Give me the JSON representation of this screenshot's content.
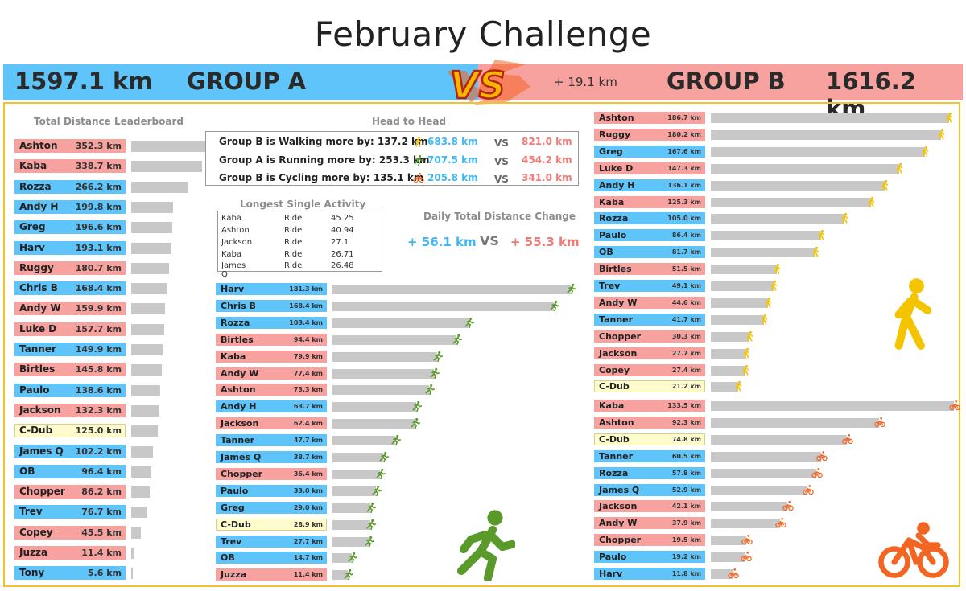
{
  "title": "February Challenge",
  "banner": {
    "group_a_total": "1597.1 km",
    "group_a_name": "GROUP A",
    "difference": "+ 19.1 km",
    "group_b_name": "GROUP B",
    "group_b_total": "1616.2 km",
    "vs_text": "VS"
  },
  "colors": {
    "group_a": "#5ec4f9",
    "group_b": "#f8a2a0",
    "neutral": "#fefbcc",
    "bar": "#c8c8c8",
    "walk": "#f5c400",
    "run": "#5a9a2a",
    "cycle": "#f26522"
  },
  "head_to_head": {
    "title": "Head to Head",
    "vs": "VS",
    "rows": [
      {
        "text": "Group B is Walking more by: 137.2 km",
        "icon": "walk-icon",
        "a": "683.8 km",
        "b": "821.0 km"
      },
      {
        "text": "Group A is Running more by: 253.3 km",
        "icon": "run-icon",
        "a": "707.5 km",
        "b": "454.2 km"
      },
      {
        "text": "Group B is Cycling more by: 135.1 km",
        "icon": "cycle-icon",
        "a": "205.8 km",
        "b": "341.0 km"
      }
    ]
  },
  "longest_single_activity": {
    "title": "Longest Single Activity",
    "rows": [
      [
        "Kaba",
        "Ride",
        "45.25"
      ],
      [
        "Ashton",
        "Ride",
        "40.94"
      ],
      [
        "Jackson",
        "Ride",
        "27.1"
      ],
      [
        "Kaba",
        "Ride",
        "26.71"
      ],
      [
        "James Q",
        "Ride",
        "26.48"
      ]
    ]
  },
  "daily_change": {
    "title": "Daily Total Distance Change",
    "a": "+ 56.1 km",
    "vs": "VS",
    "b": "+ 55.3 km"
  },
  "chart_data": [
    {
      "type": "bar",
      "title": "Total Distance Leaderboard",
      "unit": "km",
      "max": 352.3,
      "rows": [
        {
          "name": "Ashton",
          "value": 352.3,
          "group": "B",
          "label": "352.3 km"
        },
        {
          "name": "Kaba",
          "value": 338.7,
          "group": "B",
          "label": "338.7 km"
        },
        {
          "name": "Rozza",
          "value": 266.2,
          "group": "A",
          "label": "266.2 km"
        },
        {
          "name": "Andy H",
          "value": 199.8,
          "group": "A",
          "label": "199.8 km"
        },
        {
          "name": "Greg",
          "value": 196.6,
          "group": "A",
          "label": "196.6 km"
        },
        {
          "name": "Harv",
          "value": 193.1,
          "group": "A",
          "label": "193.1 km"
        },
        {
          "name": "Ruggy",
          "value": 180.7,
          "group": "B",
          "label": "180.7 km"
        },
        {
          "name": "Chris B",
          "value": 168.4,
          "group": "A",
          "label": "168.4 km"
        },
        {
          "name": "Andy W",
          "value": 159.9,
          "group": "B",
          "label": "159.9 km"
        },
        {
          "name": "Luke D",
          "value": 157.7,
          "group": "B",
          "label": "157.7 km"
        },
        {
          "name": "Tanner",
          "value": 149.9,
          "group": "A",
          "label": "149.9 km"
        },
        {
          "name": "Birtles",
          "value": 145.8,
          "group": "B",
          "label": "145.8 km"
        },
        {
          "name": "Paulo",
          "value": 138.6,
          "group": "A",
          "label": "138.6 km"
        },
        {
          "name": "Jackson",
          "value": 132.3,
          "group": "B",
          "label": "132.3 km"
        },
        {
          "name": "C-Dub",
          "value": 125.0,
          "group": "C",
          "label": "125.0 km"
        },
        {
          "name": "James Q",
          "value": 102.2,
          "group": "A",
          "label": "102.2 km"
        },
        {
          "name": "OB",
          "value": 96.4,
          "group": "A",
          "label": "96.4 km"
        },
        {
          "name": "Chopper",
          "value": 86.2,
          "group": "B",
          "label": "86.2 km"
        },
        {
          "name": "Trev",
          "value": 76.7,
          "group": "A",
          "label": "76.7 km"
        },
        {
          "name": "Copey",
          "value": 45.5,
          "group": "B",
          "label": "45.5 km"
        },
        {
          "name": "Juzza",
          "value": 11.4,
          "group": "B",
          "label": "11.4 km"
        },
        {
          "name": "Tony",
          "value": 5.6,
          "group": "A",
          "label": "5.6 km"
        }
      ]
    },
    {
      "type": "bar",
      "title": "",
      "activity": "run",
      "unit": "km",
      "max": 181.3,
      "rows": [
        {
          "name": "Harv",
          "value": 181.3,
          "group": "A",
          "label": "181.3 km"
        },
        {
          "name": "Chris B",
          "value": 168.4,
          "group": "A",
          "label": "168.4 km"
        },
        {
          "name": "Rozza",
          "value": 103.4,
          "group": "A",
          "label": "103.4 km"
        },
        {
          "name": "Birtles",
          "value": 94.4,
          "group": "B",
          "label": "94.4 km"
        },
        {
          "name": "Kaba",
          "value": 79.9,
          "group": "B",
          "label": "79.9 km"
        },
        {
          "name": "Andy W",
          "value": 77.4,
          "group": "B",
          "label": "77.4 km"
        },
        {
          "name": "Ashton",
          "value": 73.3,
          "group": "B",
          "label": "73.3 km"
        },
        {
          "name": "Andy H",
          "value": 63.7,
          "group": "A",
          "label": "63.7 km"
        },
        {
          "name": "Jackson",
          "value": 62.4,
          "group": "B",
          "label": "62.4 km"
        },
        {
          "name": "Tanner",
          "value": 47.7,
          "group": "A",
          "label": "47.7 km"
        },
        {
          "name": "James Q",
          "value": 38.7,
          "group": "A",
          "label": "38.7 km"
        },
        {
          "name": "Chopper",
          "value": 36.4,
          "group": "B",
          "label": "36.4 km"
        },
        {
          "name": "Paulo",
          "value": 33.0,
          "group": "A",
          "label": "33.0 km"
        },
        {
          "name": "Greg",
          "value": 29.0,
          "group": "A",
          "label": "29.0 km"
        },
        {
          "name": "C-Dub",
          "value": 28.9,
          "group": "C",
          "label": "28.9 km"
        },
        {
          "name": "Trev",
          "value": 27.7,
          "group": "A",
          "label": "27.7 km"
        },
        {
          "name": "OB",
          "value": 14.7,
          "group": "A",
          "label": "14.7 km"
        },
        {
          "name": "Juzza",
          "value": 11.4,
          "group": "B",
          "label": "11.4 km"
        }
      ]
    },
    {
      "type": "bar",
      "title": "",
      "activity": "walk",
      "unit": "km",
      "max": 186.7,
      "rows": [
        {
          "name": "Ashton",
          "value": 186.7,
          "group": "B",
          "label": "186.7 km"
        },
        {
          "name": "Ruggy",
          "value": 180.2,
          "group": "B",
          "label": "180.2 km"
        },
        {
          "name": "Greg",
          "value": 167.6,
          "group": "A",
          "label": "167.6 km"
        },
        {
          "name": "Luke D",
          "value": 147.3,
          "group": "B",
          "label": "147.3 km"
        },
        {
          "name": "Andy H",
          "value": 136.1,
          "group": "A",
          "label": "136.1 km"
        },
        {
          "name": "Kaba",
          "value": 125.3,
          "group": "B",
          "label": "125.3 km"
        },
        {
          "name": "Rozza",
          "value": 105.0,
          "group": "A",
          "label": "105.0 km"
        },
        {
          "name": "Paulo",
          "value": 86.4,
          "group": "A",
          "label": "86.4 km"
        },
        {
          "name": "OB",
          "value": 81.7,
          "group": "A",
          "label": "81.7 km"
        },
        {
          "name": "Birtles",
          "value": 51.5,
          "group": "B",
          "label": "51.5 km"
        },
        {
          "name": "Trev",
          "value": 49.1,
          "group": "A",
          "label": "49.1 km"
        },
        {
          "name": "Andy W",
          "value": 44.6,
          "group": "B",
          "label": "44.6 km"
        },
        {
          "name": "Tanner",
          "value": 41.7,
          "group": "A",
          "label": "41.7 km"
        },
        {
          "name": "Chopper",
          "value": 30.3,
          "group": "B",
          "label": "30.3 km"
        },
        {
          "name": "Jackson",
          "value": 27.7,
          "group": "B",
          "label": "27.7 km"
        },
        {
          "name": "Copey",
          "value": 27.4,
          "group": "B",
          "label": "27.4 km"
        },
        {
          "name": "C-Dub",
          "value": 21.2,
          "group": "C",
          "label": "21.2 km"
        }
      ]
    },
    {
      "type": "bar",
      "title": "",
      "activity": "cycle",
      "unit": "km",
      "max": 133.5,
      "rows": [
        {
          "name": "Kaba",
          "value": 133.5,
          "group": "B",
          "label": "133.5 km"
        },
        {
          "name": "Ashton",
          "value": 92.3,
          "group": "B",
          "label": "92.3 km"
        },
        {
          "name": "C-Dub",
          "value": 74.8,
          "group": "C",
          "label": "74.8 km"
        },
        {
          "name": "Tanner",
          "value": 60.5,
          "group": "A",
          "label": "60.5 km"
        },
        {
          "name": "Rozza",
          "value": 57.8,
          "group": "A",
          "label": "57.8 km"
        },
        {
          "name": "James Q",
          "value": 52.9,
          "group": "A",
          "label": "52.9 km"
        },
        {
          "name": "Jackson",
          "value": 42.1,
          "group": "B",
          "label": "42.1 km"
        },
        {
          "name": "Andy W",
          "value": 37.9,
          "group": "B",
          "label": "37.9 km"
        },
        {
          "name": "Chopper",
          "value": 19.5,
          "group": "B",
          "label": "19.5 km"
        },
        {
          "name": "Paulo",
          "value": 19.2,
          "group": "A",
          "label": "19.2 km"
        },
        {
          "name": "Harv",
          "value": 11.8,
          "group": "A",
          "label": "11.8 km"
        }
      ]
    }
  ]
}
